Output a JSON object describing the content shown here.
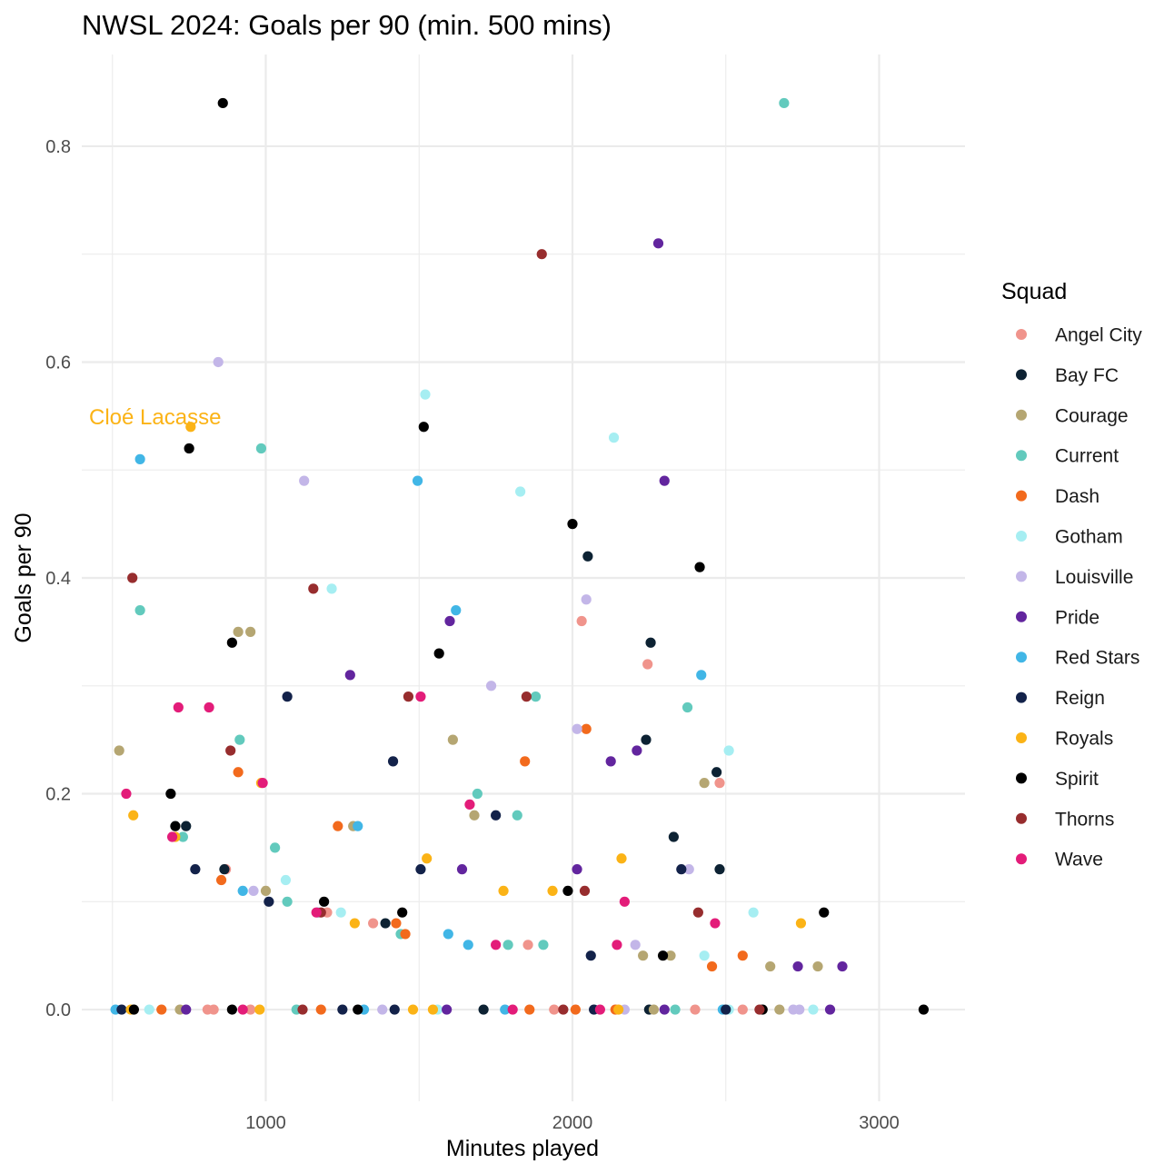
{
  "chart_data": {
    "type": "scatter",
    "title": "NWSL 2024: Goals per 90 (min. 500 mins)",
    "xlabel": "Minutes played",
    "ylabel": "Goals per 90",
    "xlim": [
      400,
      3280
    ],
    "ylim": [
      -0.085,
      0.885
    ],
    "x_ticks": [
      1000,
      2000,
      3000
    ],
    "x_tick_labels": [
      "1000",
      "2000",
      "3000"
    ],
    "x_minor_ticks": [
      500,
      1500,
      2500
    ],
    "y_ticks": [
      0.0,
      0.2,
      0.4,
      0.6,
      0.8
    ],
    "y_tick_labels": [
      "0.0",
      "0.2",
      "0.4",
      "0.6",
      "0.8"
    ],
    "y_minor_ticks": [
      0.1,
      0.3,
      0.5,
      0.7
    ],
    "grid": true,
    "legend": {
      "title": "Squad",
      "position": "right"
    },
    "annotation": {
      "text": "Cloé Lacasse",
      "x": 755,
      "y": 0.54,
      "series": "Royals"
    },
    "series": [
      {
        "name": "Angel City",
        "color": "#F0948C",
        "points": [
          [
            2030,
            0.36
          ],
          [
            2245,
            0.32
          ],
          [
            2480,
            0.21
          ],
          [
            1855,
            0.06
          ],
          [
            870,
            0.13
          ],
          [
            1200,
            0.09
          ],
          [
            1350,
            0.08
          ],
          [
            810,
            0.0
          ],
          [
            1940,
            0.0
          ],
          [
            2400,
            0.0
          ],
          [
            2555,
            0.0
          ],
          [
            830,
            0.0
          ],
          [
            950,
            0.0
          ]
        ]
      },
      {
        "name": "Bay FC",
        "color": "#0D2233",
        "points": [
          [
            2050,
            0.42
          ],
          [
            2255,
            0.34
          ],
          [
            2240,
            0.25
          ],
          [
            2470,
            0.22
          ],
          [
            2330,
            0.16
          ],
          [
            2480,
            0.13
          ],
          [
            740,
            0.17
          ],
          [
            865,
            0.13
          ],
          [
            1390,
            0.08
          ],
          [
            1710,
            0.0
          ],
          [
            2250,
            0.0
          ]
        ]
      },
      {
        "name": "Courage",
        "color": "#B5A672",
        "points": [
          [
            522,
            0.24
          ],
          [
            910,
            0.35
          ],
          [
            950,
            0.35
          ],
          [
            1610,
            0.25
          ],
          [
            1680,
            0.18
          ],
          [
            2430,
            0.21
          ],
          [
            2230,
            0.05
          ],
          [
            2320,
            0.05
          ],
          [
            1285,
            0.17
          ],
          [
            1000,
            0.11
          ],
          [
            2645,
            0.04
          ],
          [
            2800,
            0.04
          ],
          [
            2265,
            0.0
          ],
          [
            2675,
            0.0
          ],
          [
            720,
            0.0
          ]
        ]
      },
      {
        "name": "Current",
        "color": "#62CABD",
        "points": [
          [
            2690,
            0.84
          ],
          [
            985,
            0.52
          ],
          [
            590,
            0.37
          ],
          [
            915,
            0.25
          ],
          [
            1880,
            0.29
          ],
          [
            2375,
            0.28
          ],
          [
            1690,
            0.2
          ],
          [
            1820,
            0.18
          ],
          [
            730,
            0.16
          ],
          [
            1030,
            0.15
          ],
          [
            1070,
            0.1
          ],
          [
            1440,
            0.07
          ],
          [
            1790,
            0.06
          ],
          [
            1905,
            0.06
          ],
          [
            2335,
            0.0
          ],
          [
            1100,
            0.0
          ]
        ]
      },
      {
        "name": "Dash",
        "color": "#F26A1D",
        "points": [
          [
            910,
            0.22
          ],
          [
            2045,
            0.26
          ],
          [
            1845,
            0.23
          ],
          [
            1235,
            0.17
          ],
          [
            855,
            0.12
          ],
          [
            1425,
            0.08
          ],
          [
            1455,
            0.07
          ],
          [
            2455,
            0.04
          ],
          [
            2555,
            0.05
          ],
          [
            660,
            0.0
          ],
          [
            1180,
            0.0
          ],
          [
            1860,
            0.0
          ],
          [
            2010,
            0.0
          ],
          [
            2140,
            0.0
          ]
        ]
      },
      {
        "name": "Gotham",
        "color": "#A6EEF2",
        "points": [
          [
            1520,
            0.57
          ],
          [
            2135,
            0.53
          ],
          [
            1830,
            0.48
          ],
          [
            1215,
            0.39
          ],
          [
            2510,
            0.24
          ],
          [
            1065,
            0.12
          ],
          [
            1245,
            0.09
          ],
          [
            2590,
            0.09
          ],
          [
            2430,
            0.05
          ],
          [
            620,
            0.0
          ],
          [
            1560,
            0.0
          ],
          [
            2510,
            0.0
          ],
          [
            2785,
            0.0
          ]
        ]
      },
      {
        "name": "Louisville",
        "color": "#C3B6E8",
        "points": [
          [
            845,
            0.6
          ],
          [
            1125,
            0.49
          ],
          [
            2045,
            0.38
          ],
          [
            1735,
            0.3
          ],
          [
            2015,
            0.26
          ],
          [
            960,
            0.11
          ],
          [
            2380,
            0.13
          ],
          [
            2205,
            0.06
          ],
          [
            1380,
            0.0
          ],
          [
            2720,
            0.0
          ],
          [
            2170,
            0.0
          ],
          [
            2740,
            0.0
          ]
        ]
      },
      {
        "name": "Pride",
        "color": "#62259E",
        "points": [
          [
            2280,
            0.71
          ],
          [
            2300,
            0.49
          ],
          [
            1600,
            0.36
          ],
          [
            1275,
            0.31
          ],
          [
            2125,
            0.23
          ],
          [
            2210,
            0.24
          ],
          [
            2015,
            0.13
          ],
          [
            1640,
            0.13
          ],
          [
            2735,
            0.04
          ],
          [
            2880,
            0.04
          ],
          [
            2300,
            0.0
          ],
          [
            2840,
            0.0
          ],
          [
            740,
            0.0
          ],
          [
            1590,
            0.0
          ]
        ]
      },
      {
        "name": "Red Stars",
        "color": "#41B6E6",
        "points": [
          [
            590,
            0.51
          ],
          [
            1495,
            0.49
          ],
          [
            1620,
            0.37
          ],
          [
            2420,
            0.31
          ],
          [
            1300,
            0.17
          ],
          [
            925,
            0.11
          ],
          [
            1170,
            0.09
          ],
          [
            1595,
            0.07
          ],
          [
            1660,
            0.06
          ],
          [
            510,
            0.0
          ],
          [
            1320,
            0.0
          ],
          [
            1780,
            0.0
          ],
          [
            2490,
            0.0
          ]
        ]
      },
      {
        "name": "Reign",
        "color": "#13224A",
        "points": [
          [
            1070,
            0.29
          ],
          [
            1415,
            0.23
          ],
          [
            1750,
            0.18
          ],
          [
            770,
            0.13
          ],
          [
            2355,
            0.13
          ],
          [
            1010,
            0.1
          ],
          [
            2060,
            0.05
          ],
          [
            1505,
            0.13
          ],
          [
            530,
            0.0
          ],
          [
            1250,
            0.0
          ],
          [
            1420,
            0.0
          ],
          [
            2070,
            0.0
          ],
          [
            2500,
            0.0
          ]
        ]
      },
      {
        "name": "Royals",
        "color": "#FBB316",
        "points": [
          [
            755,
            0.54
          ],
          [
            568,
            0.18
          ],
          [
            705,
            0.16
          ],
          [
            985,
            0.21
          ],
          [
            1525,
            0.14
          ],
          [
            1775,
            0.11
          ],
          [
            1935,
            0.11
          ],
          [
            2160,
            0.14
          ],
          [
            2745,
            0.08
          ],
          [
            1290,
            0.08
          ],
          [
            560,
            0.0
          ],
          [
            1480,
            0.0
          ],
          [
            1545,
            0.0
          ],
          [
            2150,
            0.0
          ],
          [
            980,
            0.0
          ]
        ]
      },
      {
        "name": "Spirit",
        "color": "#000000",
        "points": [
          [
            860,
            0.84
          ],
          [
            750,
            0.52
          ],
          [
            1515,
            0.54
          ],
          [
            2000,
            0.45
          ],
          [
            2415,
            0.41
          ],
          [
            890,
            0.34
          ],
          [
            1565,
            0.33
          ],
          [
            690,
            0.2
          ],
          [
            705,
            0.17
          ],
          [
            1190,
            0.1
          ],
          [
            1445,
            0.09
          ],
          [
            1985,
            0.11
          ],
          [
            2295,
            0.05
          ],
          [
            2820,
            0.09
          ],
          [
            3145,
            0.0
          ],
          [
            890,
            0.0
          ],
          [
            1300,
            0.0
          ],
          [
            2620,
            0.0
          ],
          [
            570,
            0.0
          ]
        ]
      },
      {
        "name": "Thorns",
        "color": "#972D2E",
        "points": [
          [
            1900,
            0.7
          ],
          [
            565,
            0.4
          ],
          [
            1155,
            0.39
          ],
          [
            1465,
            0.29
          ],
          [
            1850,
            0.29
          ],
          [
            885,
            0.24
          ],
          [
            2040,
            0.11
          ],
          [
            2410,
            0.09
          ],
          [
            1180,
            0.09
          ],
          [
            1970,
            0.0
          ],
          [
            2610,
            0.0
          ],
          [
            1120,
            0.0
          ]
        ]
      },
      {
        "name": "Wave",
        "color": "#E31C79",
        "points": [
          [
            545,
            0.2
          ],
          [
            715,
            0.28
          ],
          [
            815,
            0.28
          ],
          [
            1505,
            0.29
          ],
          [
            990,
            0.21
          ],
          [
            1665,
            0.19
          ],
          [
            695,
            0.16
          ],
          [
            1165,
            0.09
          ],
          [
            1750,
            0.06
          ],
          [
            2145,
            0.06
          ],
          [
            2170,
            0.1
          ],
          [
            2465,
            0.08
          ],
          [
            925,
            0.0
          ],
          [
            1805,
            0.0
          ],
          [
            2090,
            0.0
          ]
        ]
      }
    ]
  }
}
